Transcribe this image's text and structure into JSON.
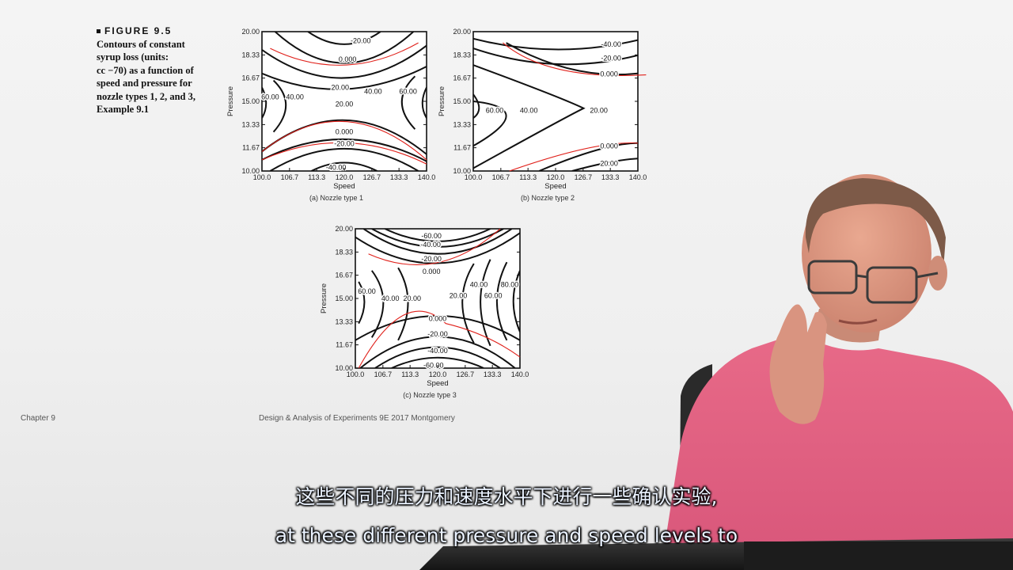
{
  "caption": {
    "figure_label": "FIGURE 9.5",
    "text_lines": [
      "Contours of constant",
      "syrup loss (units:",
      "cc −70) as a function of",
      "speed and pressure for",
      "nozzle types 1, 2, and 3,",
      "Example 9.1"
    ]
  },
  "footer": {
    "chapter": "Chapter 9",
    "source": "Design & Analysis of Experiments 9E 2017 Montgomery"
  },
  "colors": {
    "contour": "#111111",
    "annotation": "#e0201a",
    "shirt": "#e0607e"
  },
  "chart_data": [
    {
      "type": "contour",
      "caption": "(a) Nozzle type 1",
      "xlabel": "Speed",
      "ylabel": "Pressure",
      "xlim": [
        100.0,
        140.0
      ],
      "ylim": [
        10.0,
        20.0
      ],
      "x_ticks": [
        "100.0",
        "106.7",
        "113.3",
        "120.0",
        "126.7",
        "133.3",
        "140.0"
      ],
      "y_ticks": [
        "10.00",
        "11.67",
        "13.33",
        "15.00",
        "16.67",
        "18.33",
        "20.00"
      ],
      "levels": [
        "-40.00",
        "-20.00",
        "0.000",
        "20.00",
        "40.00",
        "60.00"
      ],
      "contour_labels": [
        {
          "text": "-20.00",
          "x": 124.0,
          "y": 19.35
        },
        {
          "text": "0.000",
          "x": 120.8,
          "y": 18.0
        },
        {
          "text": "20.00",
          "x": 119.0,
          "y": 16.0
        },
        {
          "text": "60.00",
          "x": 102.0,
          "y": 15.3
        },
        {
          "text": "40.00",
          "x": 108.0,
          "y": 15.3
        },
        {
          "text": "20.00",
          "x": 120.0,
          "y": 14.8
        },
        {
          "text": "40.00",
          "x": 127.0,
          "y": 15.7
        },
        {
          "text": "60.00",
          "x": 135.5,
          "y": 15.7
        },
        {
          "text": "0.000",
          "x": 120.0,
          "y": 12.8
        },
        {
          "text": "-20.00",
          "x": 120.0,
          "y": 11.95
        },
        {
          "text": "-40.00",
          "x": 118.0,
          "y": 10.25
        }
      ]
    },
    {
      "type": "contour",
      "caption": "(b) Nozzle type 2",
      "xlabel": "Speed",
      "ylabel": "Pressure",
      "xlim": [
        100.0,
        140.0
      ],
      "ylim": [
        10.0,
        20.0
      ],
      "x_ticks": [
        "100.0",
        "106.7",
        "113.3",
        "120.0",
        "126.7",
        "133.3",
        "140.0"
      ],
      "y_ticks": [
        "10.00",
        "11.67",
        "13.33",
        "15.00",
        "16.67",
        "18.33",
        "20.00"
      ],
      "levels": [
        "-40.00",
        "-20.00",
        "0.000",
        "20.00",
        "40.00",
        "60.00"
      ],
      "contour_labels": [
        {
          "text": "-40.00",
          "x": 133.5,
          "y": 19.1
        },
        {
          "text": "-20.00",
          "x": 133.5,
          "y": 18.1
        },
        {
          "text": "0.000",
          "x": 133.0,
          "y": 16.95
        },
        {
          "text": "60.00",
          "x": 105.2,
          "y": 14.35
        },
        {
          "text": "40.00",
          "x": 113.5,
          "y": 14.35
        },
        {
          "text": "20.00",
          "x": 130.5,
          "y": 14.35
        },
        {
          "text": "0.000",
          "x": 133.0,
          "y": 11.8
        },
        {
          "text": "20.00",
          "x": 133.0,
          "y": 10.55
        }
      ]
    },
    {
      "type": "contour",
      "caption": "(c) Nozzle type 3",
      "xlabel": "Speed",
      "ylabel": "Pressure",
      "xlim": [
        100.0,
        140.0
      ],
      "ylim": [
        10.0,
        20.0
      ],
      "x_ticks": [
        "100.0",
        "106.7",
        "113.3",
        "120.0",
        "126.7",
        "133.3",
        "140.0"
      ],
      "y_ticks": [
        "10.00",
        "11.67",
        "13.33",
        "15.00",
        "16.67",
        "18.33",
        "20.00"
      ],
      "levels": [
        "-60.00",
        "-40.00",
        "-20.00",
        "0.000",
        "20.00",
        "40.00",
        "60.00",
        "80.00"
      ],
      "contour_labels": [
        {
          "text": "-60.00",
          "x": 118.5,
          "y": 19.5
        },
        {
          "text": "-40.00",
          "x": 118.3,
          "y": 18.85
        },
        {
          "text": "-20.00",
          "x": 118.5,
          "y": 17.85
        },
        {
          "text": "0.000",
          "x": 118.5,
          "y": 16.92
        },
        {
          "text": "60.00",
          "x": 102.8,
          "y": 15.5
        },
        {
          "text": "40.00",
          "x": 108.5,
          "y": 15.0
        },
        {
          "text": "20.00",
          "x": 113.8,
          "y": 15.0
        },
        {
          "text": "20.00",
          "x": 125.0,
          "y": 15.2
        },
        {
          "text": "40.00",
          "x": 130.0,
          "y": 16.0
        },
        {
          "text": "60.00",
          "x": 133.5,
          "y": 15.2
        },
        {
          "text": "80.00",
          "x": 137.5,
          "y": 16.0
        },
        {
          "text": "0.000",
          "x": 120.0,
          "y": 13.55
        },
        {
          "text": "-20.00",
          "x": 120.0,
          "y": 12.45
        },
        {
          "text": "-40.00",
          "x": 120.0,
          "y": 11.25
        },
        {
          "text": "-60.00",
          "x": 119.0,
          "y": 10.2
        }
      ]
    }
  ],
  "subtitles": {
    "zh": "这些不同的压力和速度水平下进行一些确认实验,",
    "en": "at these different pressure and speed levels to"
  }
}
